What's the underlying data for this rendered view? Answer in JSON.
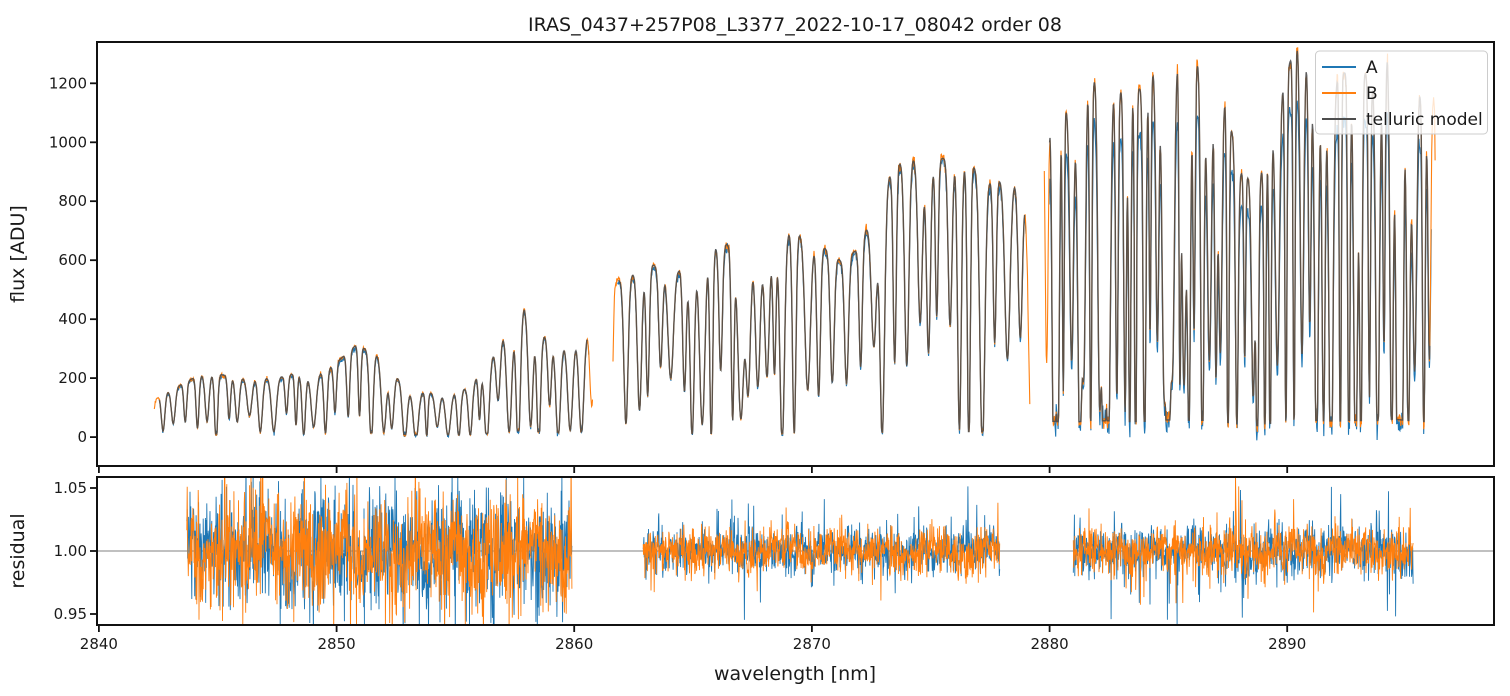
{
  "figure": {
    "title": "IRAS_0437+257P08_L3377_2022-10-17_08042  order 08",
    "background": "#ffffff",
    "spine_color": "#111111",
    "tick_color": "#111111"
  },
  "chart_data": [
    {
      "type": "line",
      "name": "flux-panel",
      "title": "IRAS_0437+257P08_L3377_2022-10-17_08042  order 08",
      "ylabel": "flux [ADU]",
      "xlabel": "",
      "legend_position": "upper right",
      "grid": false,
      "xlim": [
        2839.92,
        2898.7
      ],
      "ylim": [
        -98,
        1340
      ],
      "xticks": [
        {
          "v": 2840,
          "label": "2840"
        },
        {
          "v": 2850,
          "label": "2850"
        },
        {
          "v": 2860,
          "label": "2860"
        },
        {
          "v": 2870,
          "label": "2870"
        },
        {
          "v": 2880,
          "label": "2880"
        },
        {
          "v": 2890,
          "label": "2890"
        }
      ],
      "yticks": [
        {
          "v": 0,
          "label": "0"
        },
        {
          "v": 200,
          "label": "200"
        },
        {
          "v": 400,
          "label": "400"
        },
        {
          "v": 600,
          "label": "600"
        },
        {
          "v": 800,
          "label": "800"
        },
        {
          "v": 1000,
          "label": "1000"
        },
        {
          "v": 1200,
          "label": "1200"
        }
      ],
      "series": [
        {
          "name": "A",
          "color": "#1f77b4",
          "width": 1.1
        },
        {
          "name": "B",
          "color": "#ff7f0e",
          "width": 1.1
        },
        {
          "name": "telluric model",
          "color": "#4d4d4d",
          "width": 1.4
        }
      ],
      "segments": [
        {
          "range": [
            2842.55,
            2860.55
          ],
          "envelope": [
            [
              2842.55,
              140
            ],
            [
              2843.5,
              180
            ],
            [
              2844.2,
              210
            ],
            [
              2845.0,
              215
            ],
            [
              2845.8,
              200
            ],
            [
              2846.6,
              205
            ],
            [
              2847.4,
              200
            ],
            [
              2848.2,
              215
            ],
            [
              2849.0,
              205
            ],
            [
              2849.8,
              240
            ],
            [
              2850.8,
              310
            ],
            [
              2851.6,
              290
            ],
            [
              2852.4,
              215
            ],
            [
              2853.2,
              155
            ],
            [
              2854.0,
              150
            ],
            [
              2854.8,
              150
            ],
            [
              2855.6,
              170
            ],
            [
              2856.4,
              255
            ],
            [
              2857.2,
              385
            ],
            [
              2857.9,
              445
            ],
            [
              2858.7,
              345
            ],
            [
              2859.6,
              320
            ],
            [
              2860.55,
              370
            ]
          ],
          "spacing": [
            0.3,
            0.58
          ],
          "width": [
            0.07,
            0.15
          ],
          "depth": [
            0.6,
            1.1
          ],
          "floor": 0.05,
          "a_scale": 0.97,
          "core_noise": 5
        },
        {
          "range": [
            2861.85,
            2878.95
          ],
          "envelope": [
            [
              2861.85,
              530
            ],
            [
              2862.6,
              560
            ],
            [
              2863.3,
              585
            ],
            [
              2864.0,
              560
            ],
            [
              2864.8,
              575
            ],
            [
              2865.6,
              640
            ],
            [
              2866.4,
              655
            ],
            [
              2867.2,
              600
            ],
            [
              2868.0,
              610
            ],
            [
              2868.8,
              700
            ],
            [
              2869.6,
              690
            ],
            [
              2870.4,
              650
            ],
            [
              2871.2,
              600
            ],
            [
              2872.0,
              640
            ],
            [
              2872.8,
              830
            ],
            [
              2873.6,
              930
            ],
            [
              2874.4,
              950
            ],
            [
              2875.2,
              940
            ],
            [
              2876.0,
              955
            ],
            [
              2876.8,
              920
            ],
            [
              2877.5,
              870
            ],
            [
              2878.2,
              880
            ],
            [
              2878.95,
              860
            ]
          ],
          "spacing": [
            0.3,
            0.6
          ],
          "width": [
            0.08,
            0.17
          ],
          "depth": [
            0.55,
            1.1
          ],
          "floor": 0.02,
          "a_scale": 0.98,
          "core_noise": 8
        },
        {
          "range": [
            2880.0,
            2896.0
          ],
          "envelope": [
            [
              2880.0,
              1215
            ],
            [
              2880.8,
              1100
            ],
            [
              2881.6,
              1210
            ],
            [
              2882.4,
              1235
            ],
            [
              2883.2,
              1160
            ],
            [
              2884.0,
              1190
            ],
            [
              2884.8,
              1300
            ],
            [
              2885.6,
              1280
            ],
            [
              2886.4,
              1270
            ],
            [
              2887.2,
              1230
            ],
            [
              2888.0,
              900
            ],
            [
              2888.8,
              860
            ],
            [
              2889.6,
              1150
            ],
            [
              2890.4,
              1340
            ],
            [
              2891.2,
              1260
            ],
            [
              2892.0,
              1210
            ],
            [
              2892.8,
              1260
            ],
            [
              2893.6,
              1220
            ],
            [
              2894.4,
              1350
            ],
            [
              2895.2,
              1240
            ],
            [
              2896.0,
              1150
            ]
          ],
          "spacing": [
            0.17,
            0.4
          ],
          "width": [
            0.05,
            0.12
          ],
          "depth": [
            0.7,
            1.2
          ],
          "floor": 0.045,
          "a_scale": 0.87,
          "core_noise": 26
        }
      ]
    },
    {
      "type": "line",
      "name": "residual-panel",
      "ylabel": "residual",
      "xlabel": "wavelength [nm]",
      "grid": false,
      "xlim": [
        2839.92,
        2898.7
      ],
      "ylim": [
        0.9413,
        1.0587
      ],
      "unity_line": {
        "v": 1.0,
        "color": "#808080"
      },
      "xticks": [
        {
          "v": 2840,
          "label": "2840"
        },
        {
          "v": 2850,
          "label": "2850"
        },
        {
          "v": 2860,
          "label": "2860"
        },
        {
          "v": 2870,
          "label": "2870"
        },
        {
          "v": 2880,
          "label": "2880"
        },
        {
          "v": 2890,
          "label": "2890"
        }
      ],
      "yticks": [
        {
          "v": 0.95,
          "label": "0.95"
        },
        {
          "v": 1.0,
          "label": "1.00"
        },
        {
          "v": 1.05,
          "label": "1.05"
        }
      ],
      "series": [
        {
          "name": "A",
          "color": "#1f77b4",
          "width": 0.9
        },
        {
          "name": "B",
          "color": "#ff7f0e",
          "width": 0.9
        }
      ],
      "segments": [
        {
          "range": [
            2843.7,
            2859.9
          ],
          "sigma": 0.022,
          "wander": 0.012,
          "spike_p": 0.06,
          "spike_amp": 0.04
        },
        {
          "range": [
            2862.9,
            2877.9
          ],
          "sigma": 0.009,
          "wander": 0.005,
          "spike_p": 0.03,
          "spike_amp": 0.03
        },
        {
          "range": [
            2881.0,
            2895.3
          ],
          "sigma": 0.01,
          "wander": 0.005,
          "spike_p": 0.04,
          "spike_amp": 0.035
        }
      ]
    }
  ]
}
